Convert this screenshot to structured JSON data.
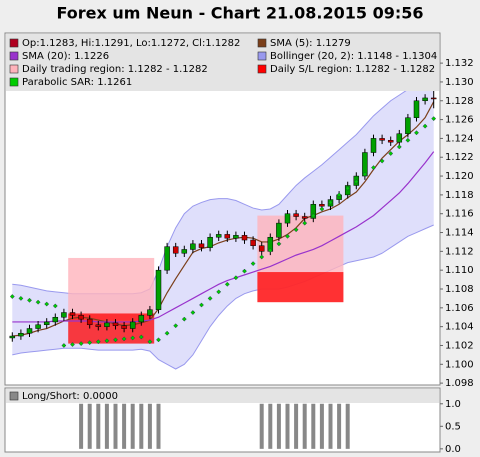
{
  "chart_data": [
    {
      "type": "candlestick",
      "title": "Forex um Neun - Chart 21.08.2015 09:56",
      "ylim": [
        1.0978,
        1.1352
      ],
      "yticks": [
        1.098,
        {
          "value": 1.1,
          "label": "1.100"
        },
        1.102,
        1.104,
        1.106,
        1.108,
        {
          "value": 1.11,
          "label": "1.110"
        },
        1.112,
        1.114,
        1.116,
        1.118,
        {
          "value": 1.12,
          "label": "1.120"
        },
        1.122,
        1.124,
        1.126,
        1.128,
        {
          "value": 1.13,
          "label": "1.130"
        },
        1.132
      ],
      "candles": {
        "name": "Op:1.1283, Hi:1.1291, Lo:1.1272, Cl:1.1282",
        "color": "#b00020",
        "up_color": "#00a000",
        "down_color": "#cc0000",
        "open": [
          1.1028,
          1.103,
          1.1033,
          1.1038,
          1.1042,
          1.1045,
          1.105,
          1.1055,
          1.1052,
          1.1048,
          1.1042,
          1.104,
          1.1044,
          1.1041,
          1.1038,
          1.1045,
          1.1052,
          1.1058,
          1.11,
          1.1125,
          1.1118,
          1.1122,
          1.1128,
          1.1124,
          1.1135,
          1.1138,
          1.1134,
          1.1137,
          1.1132,
          1.1126,
          1.112,
          1.1135,
          1.115,
          1.116,
          1.1157,
          1.1155,
          1.117,
          1.1168,
          1.1175,
          1.118,
          1.119,
          1.12,
          1.1225,
          1.124,
          1.1238,
          1.1236,
          1.1245,
          1.1262,
          1.128,
          1.1283
        ],
        "high": [
          1.1034,
          1.1037,
          1.1042,
          1.1046,
          1.1049,
          1.1054,
          1.1059,
          1.1059,
          1.1056,
          1.1052,
          1.1046,
          1.1048,
          1.1048,
          1.1045,
          1.1049,
          1.1056,
          1.1062,
          1.1104,
          1.1129,
          1.1129,
          1.1126,
          1.1132,
          1.1132,
          1.1139,
          1.1142,
          1.1142,
          1.1141,
          1.1141,
          1.1136,
          1.113,
          1.1139,
          1.1154,
          1.1164,
          1.1164,
          1.1161,
          1.1174,
          1.1174,
          1.1179,
          1.1184,
          1.1194,
          1.1204,
          1.1229,
          1.1244,
          1.1244,
          1.1242,
          1.1249,
          1.1266,
          1.1284,
          1.1287,
          1.1291
        ],
        "low": [
          1.1024,
          1.1026,
          1.1029,
          1.1034,
          1.1038,
          1.1041,
          1.1046,
          1.1048,
          1.1044,
          1.1038,
          1.1036,
          1.1036,
          1.1037,
          1.1034,
          1.1034,
          1.1041,
          1.1048,
          1.1054,
          1.1096,
          1.1114,
          1.1114,
          1.1118,
          1.112,
          1.112,
          1.1131,
          1.113,
          1.113,
          1.1128,
          1.1122,
          1.1116,
          1.1116,
          1.1131,
          1.1146,
          1.1153,
          1.1151,
          1.1151,
          1.1164,
          1.1164,
          1.1171,
          1.1176,
          1.1186,
          1.1196,
          1.1221,
          1.1234,
          1.1232,
          1.1232,
          1.1241,
          1.1258,
          1.1276,
          1.1272
        ],
        "close": [
          1.103,
          1.1033,
          1.1038,
          1.1042,
          1.1045,
          1.105,
          1.1055,
          1.1052,
          1.1048,
          1.1042,
          1.104,
          1.1044,
          1.1041,
          1.1038,
          1.1045,
          1.1052,
          1.1058,
          1.11,
          1.1125,
          1.1118,
          1.1122,
          1.1128,
          1.1124,
          1.1135,
          1.1138,
          1.1134,
          1.1137,
          1.1132,
          1.1126,
          1.112,
          1.1135,
          1.115,
          1.116,
          1.1157,
          1.1155,
          1.117,
          1.1168,
          1.1175,
          1.118,
          1.119,
          1.12,
          1.1225,
          1.124,
          1.1238,
          1.1236,
          1.1245,
          1.1262,
          1.128,
          1.1283,
          1.1282
        ]
      },
      "series": [
        {
          "name": "SMA (5): 1.1279",
          "color": "#7b3f1a",
          "values": [
            1.103,
            1.1031,
            1.1033,
            1.1036,
            1.1038,
            1.1042,
            1.1046,
            1.1049,
            1.105,
            1.1049,
            1.1047,
            1.1045,
            1.1043,
            1.1041,
            1.1042,
            1.1044,
            1.1047,
            1.1059,
            1.1076,
            1.1091,
            1.1105,
            1.1119,
            1.1123,
            1.1125,
            1.1129,
            1.1132,
            1.1134,
            1.1135,
            1.1134,
            1.113,
            1.113,
            1.1133,
            1.1138,
            1.1145,
            1.1155,
            1.1158,
            1.1162,
            1.1165,
            1.117,
            1.1177,
            1.1183,
            1.1194,
            1.1207,
            1.1219,
            1.1228,
            1.1237,
            1.1244,
            1.1252,
            1.1262,
            1.1279
          ]
        },
        {
          "name": "SMA (20): 1.1226",
          "color": "#9933cc",
          "values": [
            1.1045,
            1.1045,
            1.1045,
            1.1045,
            1.1045,
            1.1046,
            1.1046,
            1.1046,
            1.1046,
            1.1046,
            1.1045,
            1.1045,
            1.1045,
            1.1045,
            1.1045,
            1.1046,
            1.1047,
            1.105,
            1.1055,
            1.106,
            1.1065,
            1.107,
            1.1075,
            1.108,
            1.1085,
            1.1089,
            1.1092,
            1.1095,
            1.1098,
            1.1101,
            1.1104,
            1.1108,
            1.1112,
            1.1116,
            1.1119,
            1.1122,
            1.1126,
            1.1131,
            1.1136,
            1.1141,
            1.1146,
            1.1152,
            1.1158,
            1.1166,
            1.1174,
            1.1182,
            1.1192,
            1.1203,
            1.1214,
            1.1226
          ]
        },
        {
          "name": "Bollinger (20, 2): 1.1148 - 1.1304",
          "color": "#9999ee",
          "fill": "#d4d4fa",
          "upper": [
            1.1085,
            1.1084,
            1.1082,
            1.108,
            1.1078,
            1.1077,
            1.1076,
            1.1075,
            1.1075,
            1.1075,
            1.1075,
            1.1075,
            1.1075,
            1.1075,
            1.1075,
            1.1076,
            1.108,
            1.11,
            1.1125,
            1.1145,
            1.116,
            1.1168,
            1.1172,
            1.1175,
            1.1176,
            1.1176,
            1.1174,
            1.117,
            1.1166,
            1.1164,
            1.1165,
            1.117,
            1.118,
            1.119,
            1.1198,
            1.1205,
            1.1212,
            1.122,
            1.1228,
            1.1236,
            1.1244,
            1.1254,
            1.1264,
            1.1272,
            1.128,
            1.1286,
            1.1292,
            1.1298,
            1.1302,
            1.1304
          ],
          "lower": [
            1.101,
            1.1012,
            1.1013,
            1.1014,
            1.1015,
            1.1016,
            1.1017,
            1.1017,
            1.1017,
            1.1016,
            1.1015,
            1.1015,
            1.1015,
            1.1015,
            1.1015,
            1.1016,
            1.1014,
            1.1005,
            1.1,
            1.0995,
            1.1,
            1.101,
            1.1025,
            1.104,
            1.1052,
            1.1062,
            1.107,
            1.1075,
            1.1078,
            1.108,
            1.108,
            1.108,
            1.1082,
            1.1085,
            1.1088,
            1.1092,
            1.1096,
            1.11,
            1.1104,
            1.1108,
            1.111,
            1.1112,
            1.1114,
            1.1118,
            1.1124,
            1.113,
            1.1136,
            1.114,
            1.1144,
            1.1148
          ]
        },
        {
          "name": "Parabolic SAR: 1.1261",
          "color": "#00cc00",
          "values": [
            1.1072,
            1.107,
            1.1068,
            1.1066,
            1.1064,
            1.1062,
            1.102,
            1.1021,
            1.1022,
            1.1023,
            1.1024,
            1.1025,
            1.1026,
            1.1027,
            1.1028,
            1.1029,
            1.1024,
            1.1026,
            1.1033,
            1.1041,
            1.1048,
            1.1055,
            1.1063,
            1.107,
            1.1077,
            1.1085,
            1.1092,
            1.1099,
            1.1107,
            1.1114,
            1.1121,
            1.1128,
            1.1136,
            1.1143,
            1.115,
            1.1158,
            1.1165,
            1.1172,
            1.118,
            1.1187,
            1.1194,
            1.1202,
            1.1209,
            1.1216,
            1.1224,
            1.1231,
            1.1238,
            1.1246,
            1.1253,
            1.1261
          ]
        }
      ],
      "regions": [
        {
          "name": "Daily trading region: 1.1282 - 1.1282",
          "color": "#ffb3bb",
          "boxes": [
            {
              "x": [
                7,
                16
              ],
              "y": [
                1.1047,
                1.1113
              ]
            },
            {
              "x": [
                29,
                38
              ],
              "y": [
                1.1066,
                1.1158
              ]
            }
          ]
        },
        {
          "name": "Daily S/L region: 1.1282 - 1.1282",
          "color": "#ff0000",
          "boxes": [
            {
              "x": [
                7,
                16
              ],
              "y": [
                1.1022,
                1.1054
              ]
            },
            {
              "x": [
                29,
                38
              ],
              "y": [
                1.1066,
                1.1098
              ]
            }
          ]
        }
      ]
    },
    {
      "type": "bar",
      "legend": "Long/Short: 0.0000",
      "color": "#888888",
      "ylim": [
        -0.07,
        1.35
      ],
      "yticks": [
        {
          "value": 1,
          "label": "1.0"
        },
        {
          "value": 0.5,
          "label": "0.5"
        },
        {
          "value": 0,
          "label": "0.0"
        }
      ],
      "values": [
        0,
        0,
        0,
        0,
        0,
        0,
        0,
        0,
        1,
        1,
        1,
        1,
        1,
        1,
        1,
        1,
        1,
        1,
        0,
        0,
        0,
        0,
        0,
        0,
        0,
        0,
        0,
        0,
        0,
        1,
        1,
        1,
        1,
        1,
        1,
        1,
        1,
        1,
        1,
        1,
        0,
        0,
        0,
        0,
        0,
        0,
        0,
        0,
        0,
        0
      ]
    }
  ]
}
